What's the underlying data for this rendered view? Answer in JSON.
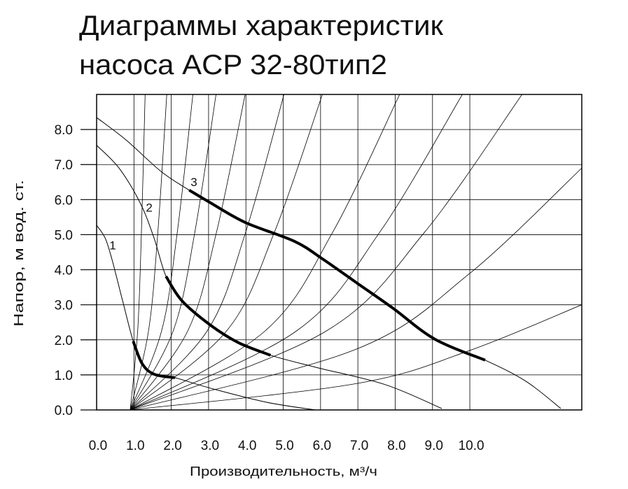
{
  "chart_data": {
    "type": "line",
    "title": "Диаграммы характеристик",
    "subtitle": "насоса ACP 32-80тип2",
    "x_label": "Производительность, м³/ч",
    "y_label": "Напор, м вод. ст.",
    "xlim": [
      0,
      13
    ],
    "ylim": [
      0,
      9
    ],
    "grid": true,
    "xticks": [
      {
        "value": 0,
        "label": "0.0"
      },
      {
        "value": 1,
        "label": "1.0"
      },
      {
        "value": 2,
        "label": "2.0"
      },
      {
        "value": 3,
        "label": "3.0"
      },
      {
        "value": 4,
        "label": "4.0"
      },
      {
        "value": 5,
        "label": "5.0"
      },
      {
        "value": 6,
        "label": "6.0"
      },
      {
        "value": 7,
        "label": "7.0"
      },
      {
        "value": 8,
        "label": "8.0"
      },
      {
        "value": 9,
        "label": "9.0"
      },
      {
        "value": 10,
        "label": "10.0"
      }
    ],
    "yticks": [
      {
        "value": 0,
        "label": "0.0"
      },
      {
        "value": 1,
        "label": "1.0"
      },
      {
        "value": 2,
        "label": "2.0"
      },
      {
        "value": 3,
        "label": "3.0"
      },
      {
        "value": 4,
        "label": "4.0"
      },
      {
        "value": 5,
        "label": "5.0"
      },
      {
        "value": 6,
        "label": "6.0"
      },
      {
        "value": 7,
        "label": "7.0"
      },
      {
        "value": 8,
        "label": "8.0"
      }
    ],
    "series": [
      {
        "name": "1",
        "color": "#000000",
        "line_width": 1,
        "x": [
          0,
          0.23,
          0.41,
          0.7,
          0.98,
          1.22,
          1.54,
          2.1,
          3.05,
          4.55,
          5.86
        ],
        "values": [
          5.27,
          4.9,
          4.3,
          3.1,
          1.96,
          1.32,
          1.02,
          0.92,
          0.62,
          0.22,
          0
        ]
      },
      {
        "name": "2",
        "color": "#000000",
        "line_width": 1,
        "x": [
          0,
          0.6,
          1.17,
          1.54,
          1.86,
          2.29,
          3.05,
          3.8,
          4.66,
          5.86,
          7.74,
          9.25
        ],
        "values": [
          7.55,
          6.9,
          5.9,
          4.9,
          3.81,
          3.11,
          2.42,
          1.92,
          1.56,
          1.22,
          0.72,
          0.04
        ]
      },
      {
        "name": "3",
        "color": "#000000",
        "line_width": 1,
        "x": [
          0,
          0.79,
          1.73,
          2.48,
          3.05,
          3.98,
          5.3,
          6.05,
          6.99,
          7.93,
          9.06,
          10.41,
          11.5,
          12.44
        ],
        "values": [
          8.34,
          7.7,
          6.8,
          6.27,
          5.91,
          5.35,
          4.81,
          4.31,
          3.61,
          2.91,
          2.02,
          1.42,
          0.82,
          0.04
        ]
      },
      {
        "color": "#000000",
        "line_width": 4,
        "x": [
          0.98,
          1.22,
          1.54,
          2.1
        ],
        "values": [
          1.96,
          1.32,
          1.02,
          0.92
        ]
      },
      {
        "color": "#000000",
        "line_width": 4,
        "x": [
          1.86,
          2.29,
          3.05,
          3.8,
          4.66
        ],
        "values": [
          3.81,
          3.11,
          2.42,
          1.92,
          1.56
        ]
      },
      {
        "color": "#000000",
        "line_width": 4,
        "x": [
          2.48,
          3.05,
          3.98,
          5.3,
          6.05,
          6.99,
          7.93,
          9.06,
          10.41
        ],
        "values": [
          6.27,
          5.91,
          5.35,
          4.81,
          4.31,
          3.61,
          2.91,
          2.02,
          1.42
        ]
      },
      {
        "color": "#000000",
        "line_width": 0.8,
        "x": [
          0.9,
          1.1,
          1.2,
          1.3
        ],
        "values": [
          0,
          2.25,
          5.06,
          9
        ]
      },
      {
        "color": "#000000",
        "line_width": 0.8,
        "x": [
          0.9,
          1.39,
          1.64,
          1.88
        ],
        "values": [
          0,
          2.25,
          5.06,
          9
        ]
      },
      {
        "color": "#000000",
        "line_width": 0.8,
        "x": [
          0.9,
          1.74,
          2.16,
          2.58
        ],
        "values": [
          0,
          2.25,
          5.06,
          9
        ]
      },
      {
        "color": "#000000",
        "line_width": 0.8,
        "x": [
          0.9,
          2.05,
          2.63,
          3.2
        ],
        "values": [
          0,
          2.25,
          5.06,
          9
        ]
      },
      {
        "color": "#000000",
        "line_width": 0.8,
        "x": [
          0.9,
          2.44,
          3.21,
          3.98
        ],
        "values": [
          0,
          2.25,
          5.06,
          9
        ]
      },
      {
        "color": "#000000",
        "line_width": 0.8,
        "x": [
          0.9,
          2.96,
          3.99,
          5.02
        ],
        "values": [
          0,
          2.25,
          5.06,
          9
        ]
      },
      {
        "color": "#000000",
        "line_width": 0.8,
        "x": [
          0.9,
          3.48,
          4.76,
          6.05
        ],
        "values": [
          0,
          2.25,
          5.06,
          9
        ]
      },
      {
        "color": "#000000",
        "line_width": 0.8,
        "x": [
          0.9,
          4.51,
          6.32,
          8.12
        ],
        "values": [
          0,
          2.25,
          5.06,
          9
        ]
      },
      {
        "color": "#000000",
        "line_width": 0.8,
        "x": [
          0.9,
          5.35,
          7.58,
          9.8
        ],
        "values": [
          0,
          2.25,
          5.06,
          9
        ]
      },
      {
        "color": "#000000",
        "line_width": 0.8,
        "x": [
          0.9,
          6.15,
          8.78,
          11.4
        ],
        "values": [
          0,
          2.25,
          5.06,
          9
        ]
      },
      {
        "color": "#000000",
        "line_width": 0.8,
        "x": [
          0.9,
          6.95,
          9.98,
          13
        ],
        "values": [
          0,
          1.73,
          3.88,
          6.9
        ]
      },
      {
        "color": "#000000",
        "line_width": 0.8,
        "x": [
          0.9,
          6.95,
          9.98,
          13
        ],
        "values": [
          0,
          0.75,
          1.69,
          3
        ]
      }
    ]
  }
}
